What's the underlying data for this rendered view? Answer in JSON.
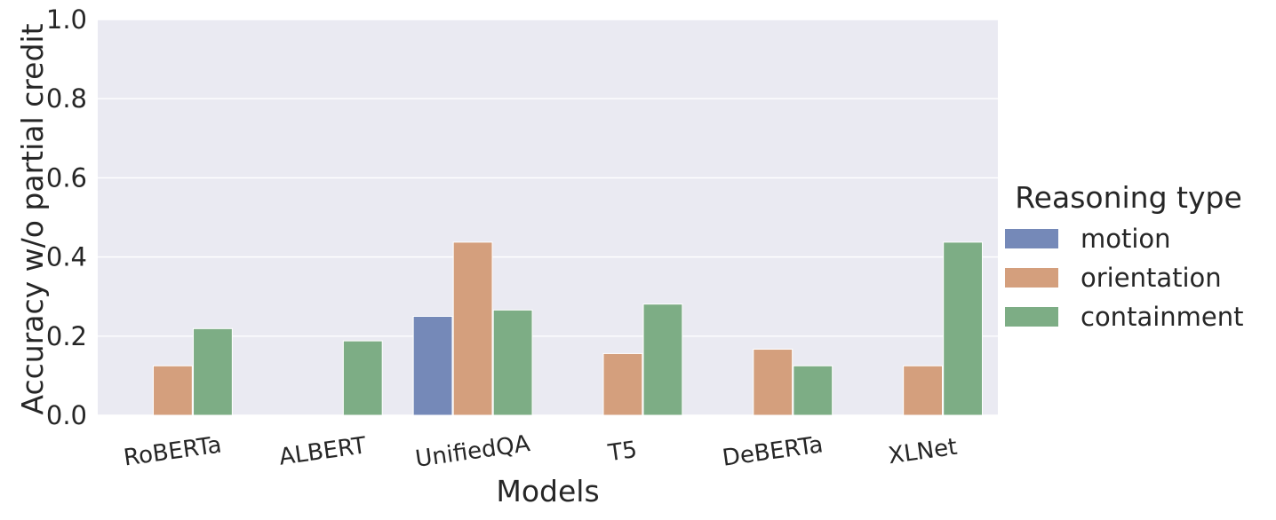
{
  "chart_data": {
    "type": "bar",
    "title": "",
    "xlabel": "Models",
    "ylabel": "Accuracy w/o partial credit",
    "ylim": [
      0,
      1.0
    ],
    "yticks": [
      "0.0",
      "0.2",
      "0.4",
      "0.6",
      "0.8",
      "1.0"
    ],
    "grid": true,
    "legend_position": "right",
    "legend_title": "Reasoning type",
    "categories": [
      "RoBERTa",
      "ALBERT",
      "UnifiedQA",
      "T5",
      "DeBERTa",
      "XLNet"
    ],
    "series": [
      {
        "name": "motion",
        "color": "#7589b8",
        "values": [
          0,
          0,
          0.25,
          0,
          0,
          0
        ]
      },
      {
        "name": "orientation",
        "color": "#d49f7d",
        "values": [
          0.125,
          0,
          0.4375,
          0.156,
          0.167,
          0.125
        ]
      },
      {
        "name": "containment",
        "color": "#7dad85",
        "values": [
          0.219,
          0.188,
          0.266,
          0.281,
          0.125,
          0.4375
        ]
      }
    ],
    "colors": {
      "plot_background": "#eaeaf2",
      "gridline": "#ffffff",
      "text": "#262626"
    }
  }
}
